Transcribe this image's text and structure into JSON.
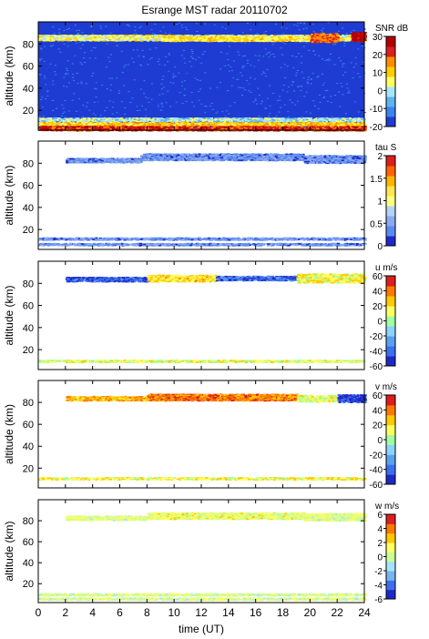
{
  "title": "Esrange MST radar 20110702",
  "xlabel": "time (UT)",
  "ylabel": "altitude (km)",
  "chart_data": [
    {
      "type": "heatmap",
      "quantity": "SNR",
      "colorbar_label": "SNR dB",
      "clim": [
        -20,
        30
      ],
      "cticks": [
        30,
        20,
        10,
        0,
        -10,
        -20
      ],
      "colors": [
        "#1e3cd2",
        "#3c82f0",
        "#5ab4f0",
        "#a5e6ff",
        "#ffff60",
        "#ffcc00",
        "#ff8c00",
        "#dc1e1e",
        "#b40000"
      ],
      "background_color": "#1e3cd2",
      "xlim": [
        0,
        24
      ],
      "ylim": [
        2,
        100
      ],
      "xticks": [
        0,
        2,
        4,
        6,
        8,
        10,
        12,
        14,
        16,
        18,
        20,
        22,
        24
      ],
      "yticks": [
        20,
        40,
        60,
        80
      ],
      "ylabel": "altitude (km)",
      "features": [
        {
          "t0": 0,
          "t1": 24,
          "alt": 86,
          "dz": 2.5,
          "value": 5
        },
        {
          "t0": 9,
          "t1": 20,
          "alt": 85,
          "dz": 2,
          "value": 8
        },
        {
          "t0": 20,
          "t1": 22,
          "alt": 86,
          "dz": 4,
          "value": 18
        },
        {
          "t0": 23,
          "t1": 24,
          "alt": 87,
          "dz": 4,
          "value": 28
        },
        {
          "t0": 0,
          "t1": 24,
          "alt": 12,
          "dz": 1.5,
          "value": 0
        },
        {
          "t0": 0,
          "t1": 24,
          "alt": 8,
          "dz": 1.5,
          "value": 10
        },
        {
          "t0": 0,
          "t1": 24,
          "alt": 4,
          "dz": 2,
          "value": 22
        }
      ]
    },
    {
      "type": "heatmap",
      "quantity": "tau",
      "colorbar_label": "tau S",
      "clim": [
        0,
        2
      ],
      "cticks": [
        2,
        1.5,
        1,
        0.5,
        0
      ],
      "colors": [
        "#1e28c8",
        "#5a8cf0",
        "#8caaf0",
        "#b4d2f5",
        "#ffff80",
        "#ffe650",
        "#ffb400",
        "#ff6400",
        "#dc1e1e"
      ],
      "xlim": [
        0,
        24
      ],
      "ylim": [
        2,
        100
      ],
      "xticks": [
        0,
        2,
        4,
        6,
        8,
        10,
        12,
        14,
        16,
        18,
        20,
        22,
        24
      ],
      "yticks": [
        20,
        40,
        60,
        80
      ],
      "ylabel": "altitude (km)",
      "features": [
        {
          "t0": 2,
          "t1": 7.5,
          "alt": 83,
          "dz": 2,
          "value": 0.4
        },
        {
          "t0": 7.5,
          "t1": 19.5,
          "alt": 86,
          "dz": 3,
          "value": 0.4
        },
        {
          "t0": 19.5,
          "t1": 24,
          "alt": 84,
          "dz": 3.5,
          "value": 0.4
        },
        {
          "t0": 0,
          "t1": 24,
          "alt": 12,
          "dz": 1,
          "value": 0.4
        },
        {
          "t0": 0,
          "t1": 24,
          "alt": 7,
          "dz": 1,
          "value": 0.4
        }
      ]
    },
    {
      "type": "heatmap",
      "quantity": "u",
      "colorbar_label": "u m/s",
      "clim": [
        -60,
        60
      ],
      "cticks": [
        60,
        40,
        20,
        0,
        -20,
        -40,
        -60
      ],
      "colors": [
        "#1e28c8",
        "#3c6ef0",
        "#5aa0f0",
        "#8cd2ff",
        "#a0ffa0",
        "#ffff60",
        "#ffc800",
        "#ff7800",
        "#dc1e1e"
      ],
      "xlim": [
        0,
        24
      ],
      "ylim": [
        2,
        100
      ],
      "xticks": [
        0,
        2,
        4,
        6,
        8,
        10,
        12,
        14,
        16,
        18,
        20,
        22,
        24
      ],
      "yticks": [
        20,
        40,
        60,
        80
      ],
      "ylabel": "altitude (km)",
      "features": [
        {
          "t0": 2,
          "t1": 8,
          "alt": 84,
          "dz": 2,
          "value": -45
        },
        {
          "t0": 8,
          "t1": 13,
          "alt": 85,
          "dz": 3,
          "value": 20
        },
        {
          "t0": 13,
          "t1": 19,
          "alt": 85,
          "dz": 2,
          "value": -40
        },
        {
          "t0": 19,
          "t1": 24,
          "alt": 85,
          "dz": 4,
          "value": 15
        },
        {
          "t0": 0,
          "t1": 24,
          "alt": 10,
          "dz": 1,
          "value": 10
        }
      ]
    },
    {
      "type": "heatmap",
      "quantity": "v",
      "colorbar_label": "v m/s",
      "clim": [
        -60,
        60
      ],
      "cticks": [
        60,
        40,
        20,
        0,
        -20,
        -40,
        -60
      ],
      "colors": [
        "#1e28c8",
        "#3c6ef0",
        "#5aa0f0",
        "#8cd2ff",
        "#a0ffa0",
        "#ffff60",
        "#ffc800",
        "#ff7800",
        "#dc1e1e"
      ],
      "xlim": [
        0,
        24
      ],
      "ylim": [
        2,
        100
      ],
      "xticks": [
        0,
        2,
        4,
        6,
        8,
        10,
        12,
        14,
        16,
        18,
        20,
        22,
        24
      ],
      "yticks": [
        20,
        40,
        60,
        80
      ],
      "ylabel": "altitude (km)",
      "features": [
        {
          "t0": 2,
          "t1": 8,
          "alt": 84,
          "dz": 2,
          "value": 30
        },
        {
          "t0": 8,
          "t1": 19,
          "alt": 85,
          "dz": 3,
          "value": 40
        },
        {
          "t0": 19,
          "t1": 22,
          "alt": 84,
          "dz": 3,
          "value": 10
        },
        {
          "t0": 22,
          "t1": 24,
          "alt": 84,
          "dz": 3.5,
          "value": -50
        },
        {
          "t0": 0,
          "t1": 24,
          "alt": 11,
          "dz": 1,
          "value": 15
        }
      ]
    },
    {
      "type": "heatmap",
      "quantity": "w",
      "colorbar_label": "w m/s",
      "clim": [
        -6,
        6
      ],
      "cticks": [
        6,
        4,
        2,
        0,
        -2,
        -4,
        -6
      ],
      "colors": [
        "#1e28c8",
        "#3c6ef0",
        "#78b4f0",
        "#a0e6ff",
        "#c8ff96",
        "#ffff60",
        "#ffc800",
        "#ff7800",
        "#dc1e1e"
      ],
      "xlim": [
        0,
        24
      ],
      "ylim": [
        2,
        100
      ],
      "xticks": [
        0,
        2,
        4,
        6,
        8,
        10,
        12,
        14,
        16,
        18,
        20,
        22,
        24
      ],
      "yticks": [
        20,
        40,
        60,
        80
      ],
      "ylabel": "altitude (km)",
      "features": [
        {
          "t0": 2,
          "t1": 8,
          "alt": 83,
          "dz": 2,
          "value": 0.5
        },
        {
          "t0": 8,
          "t1": 19.5,
          "alt": 85,
          "dz": 3,
          "value": 1
        },
        {
          "t0": 19.5,
          "t1": 24,
          "alt": 84,
          "dz": 3.5,
          "value": 0.5
        },
        {
          "t0": 0,
          "t1": 24,
          "alt": 10,
          "dz": 1,
          "value": 0.3
        },
        {
          "t0": 0,
          "t1": 24,
          "alt": 6,
          "dz": 1,
          "value": 0.3
        }
      ]
    }
  ]
}
